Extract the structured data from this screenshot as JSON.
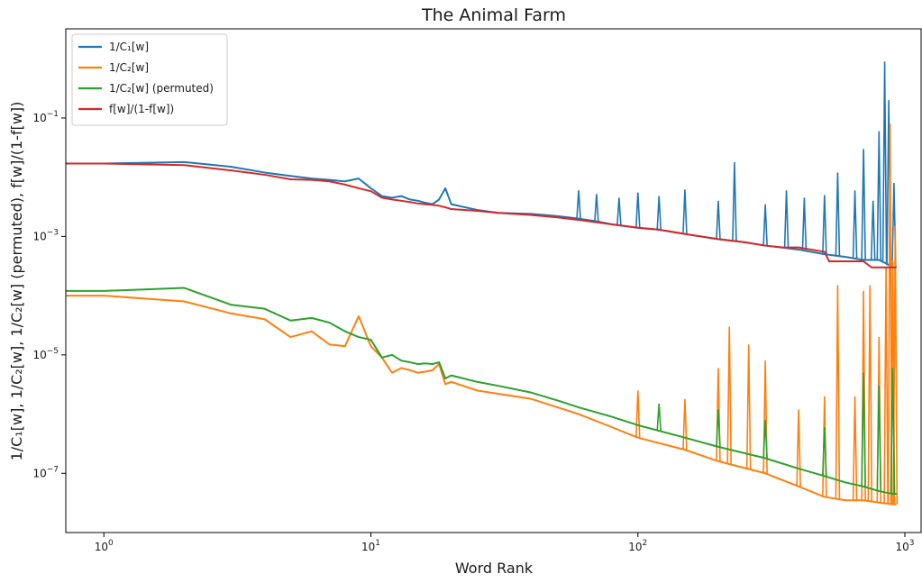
{
  "chart_data": {
    "type": "line",
    "title": "The Animal Farm",
    "xlabel": "Word Rank",
    "ylabel": "1/C₁[w], 1/C₂[w], 1/C₂[w] (permuted), f[w]/(1-f[w])",
    "xscale": "log",
    "yscale": "log",
    "xlim": [
      0.72,
      1150
    ],
    "ylim": [
      1e-08,
      3.2
    ],
    "grid": false,
    "legend_position": "top-left",
    "x_ticks": [
      {
        "value": 1,
        "mantissa": "10",
        "exp": "0"
      },
      {
        "value": 10,
        "mantissa": "10",
        "exp": "1"
      },
      {
        "value": 100,
        "mantissa": "10",
        "exp": "2"
      },
      {
        "value": 1000,
        "mantissa": "10",
        "exp": "3"
      }
    ],
    "y_ticks": [
      {
        "value": 1e-07,
        "mantissa": "10",
        "exp": "−7"
      },
      {
        "value": 1e-05,
        "mantissa": "10",
        "exp": "−5"
      },
      {
        "value": 0.001,
        "mantissa": "10",
        "exp": "−3"
      },
      {
        "value": 0.1,
        "mantissa": "10",
        "exp": "−1"
      }
    ],
    "series": [
      {
        "name": "1/C₁[w]",
        "color": "#1f77b4",
        "x": [
          1,
          2,
          3,
          4,
          5,
          6,
          7,
          8,
          9,
          10,
          11,
          12,
          13,
          14,
          15,
          16,
          17,
          18,
          19,
          20,
          25,
          30,
          40,
          50,
          60,
          70,
          80,
          100,
          120,
          150,
          200,
          250,
          300,
          400,
          500,
          600,
          700,
          750,
          800,
          850,
          900,
          930
        ],
        "y": [
          0.017,
          0.018,
          0.015,
          0.012,
          0.0105,
          0.0095,
          0.009,
          0.0085,
          0.0095,
          0.0065,
          0.0048,
          0.0045,
          0.0048,
          0.0042,
          0.004,
          0.0037,
          0.0035,
          0.0042,
          0.0065,
          0.0035,
          0.0028,
          0.0025,
          0.0024,
          0.0022,
          0.002,
          0.0018,
          0.0016,
          0.0014,
          0.0013,
          0.0011,
          0.0009,
          0.0008,
          0.0007,
          0.0006,
          0.0005,
          0.00045,
          0.0004,
          0.0004,
          0.0004,
          0.00035,
          0.0003,
          0.0003
        ],
        "spikes": [
          {
            "x": 60,
            "y": 0.006
          },
          {
            "x": 70,
            "y": 0.0052
          },
          {
            "x": 85,
            "y": 0.0045
          },
          {
            "x": 100,
            "y": 0.0055
          },
          {
            "x": 120,
            "y": 0.0048
          },
          {
            "x": 150,
            "y": 0.0062
          },
          {
            "x": 200,
            "y": 0.004
          },
          {
            "x": 230,
            "y": 0.018
          },
          {
            "x": 300,
            "y": 0.0035
          },
          {
            "x": 360,
            "y": 0.006
          },
          {
            "x": 420,
            "y": 0.0045
          },
          {
            "x": 500,
            "y": 0.005
          },
          {
            "x": 560,
            "y": 0.012
          },
          {
            "x": 650,
            "y": 0.006
          },
          {
            "x": 700,
            "y": 0.03
          },
          {
            "x": 760,
            "y": 0.004
          },
          {
            "x": 800,
            "y": 0.06
          },
          {
            "x": 840,
            "y": 0.9
          },
          {
            "x": 870,
            "y": 0.2
          },
          {
            "x": 910,
            "y": 0.008
          }
        ]
      },
      {
        "name": "1/C₂[w]",
        "color": "#ff7f0e",
        "x": [
          0.72,
          1,
          2,
          3,
          4,
          5,
          6,
          7,
          8,
          9,
          10,
          11,
          12,
          13,
          14,
          15,
          16,
          17,
          18,
          19,
          20,
          25,
          30,
          40,
          50,
          60,
          80,
          100,
          150,
          200,
          300,
          400,
          500,
          600,
          700,
          800,
          900,
          930
        ],
        "y": [
          0.0001,
          0.0001,
          8e-05,
          5e-05,
          4e-05,
          2e-05,
          2.5e-05,
          1.5e-05,
          1.4e-05,
          4.5e-05,
          1.4e-05,
          9e-06,
          5e-06,
          6e-06,
          5.5e-06,
          5e-06,
          5.2e-06,
          5.5e-06,
          7e-06,
          3.2e-06,
          3.5e-06,
          2.5e-06,
          2.2e-06,
          1.8e-06,
          1.3e-06,
          1e-06,
          6e-07,
          4e-07,
          2.5e-07,
          1.6e-07,
          1e-07,
          6e-08,
          4e-08,
          3.5e-08,
          3.5e-08,
          3.2e-08,
          3e-08,
          3e-08
        ],
        "spikes": [
          {
            "x": 100,
            "y": 2.5e-06
          },
          {
            "x": 150,
            "y": 1.8e-06
          },
          {
            "x": 200,
            "y": 6e-06
          },
          {
            "x": 220,
            "y": 3e-05
          },
          {
            "x": 260,
            "y": 1.5e-05
          },
          {
            "x": 300,
            "y": 8e-06
          },
          {
            "x": 400,
            "y": 1.2e-06
          },
          {
            "x": 500,
            "y": 2e-06
          },
          {
            "x": 560,
            "y": 0.00015
          },
          {
            "x": 650,
            "y": 2e-06
          },
          {
            "x": 700,
            "y": 0.00012
          },
          {
            "x": 740,
            "y": 0.00015
          },
          {
            "x": 800,
            "y": 2e-05
          },
          {
            "x": 850,
            "y": 0.0003
          },
          {
            "x": 880,
            "y": 0.08
          },
          {
            "x": 900,
            "y": 0.0004
          },
          {
            "x": 920,
            "y": 0.0015
          }
        ]
      },
      {
        "name": "1/C₂[w] (permuted)",
        "color": "#2ca02c",
        "x": [
          0.72,
          1,
          2,
          3,
          4,
          5,
          6,
          7,
          8,
          9,
          10,
          11,
          12,
          13,
          14,
          15,
          16,
          17,
          18,
          19,
          20,
          25,
          30,
          40,
          50,
          60,
          80,
          100,
          150,
          200,
          300,
          400,
          500,
          600,
          700,
          800,
          900,
          930
        ],
        "y": [
          0.00012,
          0.00012,
          0.000135,
          7e-05,
          6e-05,
          3.8e-05,
          4.2e-05,
          3.5e-05,
          2.5e-05,
          2e-05,
          1.8e-05,
          9e-06,
          1e-05,
          8e-06,
          7.5e-06,
          7e-06,
          7.2e-06,
          7e-06,
          7.5e-06,
          4e-06,
          4.5e-06,
          3.5e-06,
          3e-06,
          2.3e-06,
          1.7e-06,
          1.3e-06,
          9e-07,
          6.5e-07,
          4e-07,
          2.8e-07,
          1.8e-07,
          1.2e-07,
          9e-08,
          7e-08,
          6e-08,
          5e-08,
          4.5e-08,
          4.5e-08
        ],
        "spikes": [
          {
            "x": 120,
            "y": 1.5e-06
          },
          {
            "x": 200,
            "y": 1.2e-06
          },
          {
            "x": 300,
            "y": 8e-07
          },
          {
            "x": 500,
            "y": 6e-07
          },
          {
            "x": 700,
            "y": 5e-06
          },
          {
            "x": 800,
            "y": 3e-06
          },
          {
            "x": 900,
            "y": 6e-06
          }
        ]
      },
      {
        "name": "f[w]/(1-f[w])",
        "color": "#d62728",
        "x": [
          0.72,
          1,
          2,
          3,
          4,
          5,
          6,
          7,
          8,
          9,
          10,
          11,
          12,
          13,
          14,
          15,
          16,
          17,
          18,
          19,
          20,
          25,
          30,
          40,
          50,
          60,
          80,
          100,
          120,
          150,
          200,
          250,
          300,
          350,
          400,
          500,
          520,
          600,
          700,
          750,
          800,
          900,
          930
        ],
        "y": [
          0.017,
          0.017,
          0.016,
          0.013,
          0.011,
          0.0092,
          0.009,
          0.0085,
          0.0075,
          0.0065,
          0.0058,
          0.0045,
          0.0042,
          0.004,
          0.0038,
          0.0036,
          0.0035,
          0.0034,
          0.0033,
          0.0031,
          0.0029,
          0.0027,
          0.0025,
          0.0023,
          0.0021,
          0.0019,
          0.0016,
          0.0014,
          0.0013,
          0.0011,
          0.0009,
          0.0008,
          0.0007,
          0.00065,
          0.00065,
          0.00055,
          0.00038,
          0.00038,
          0.00038,
          0.0003,
          0.0003,
          0.0003,
          0.0003
        ]
      }
    ]
  }
}
